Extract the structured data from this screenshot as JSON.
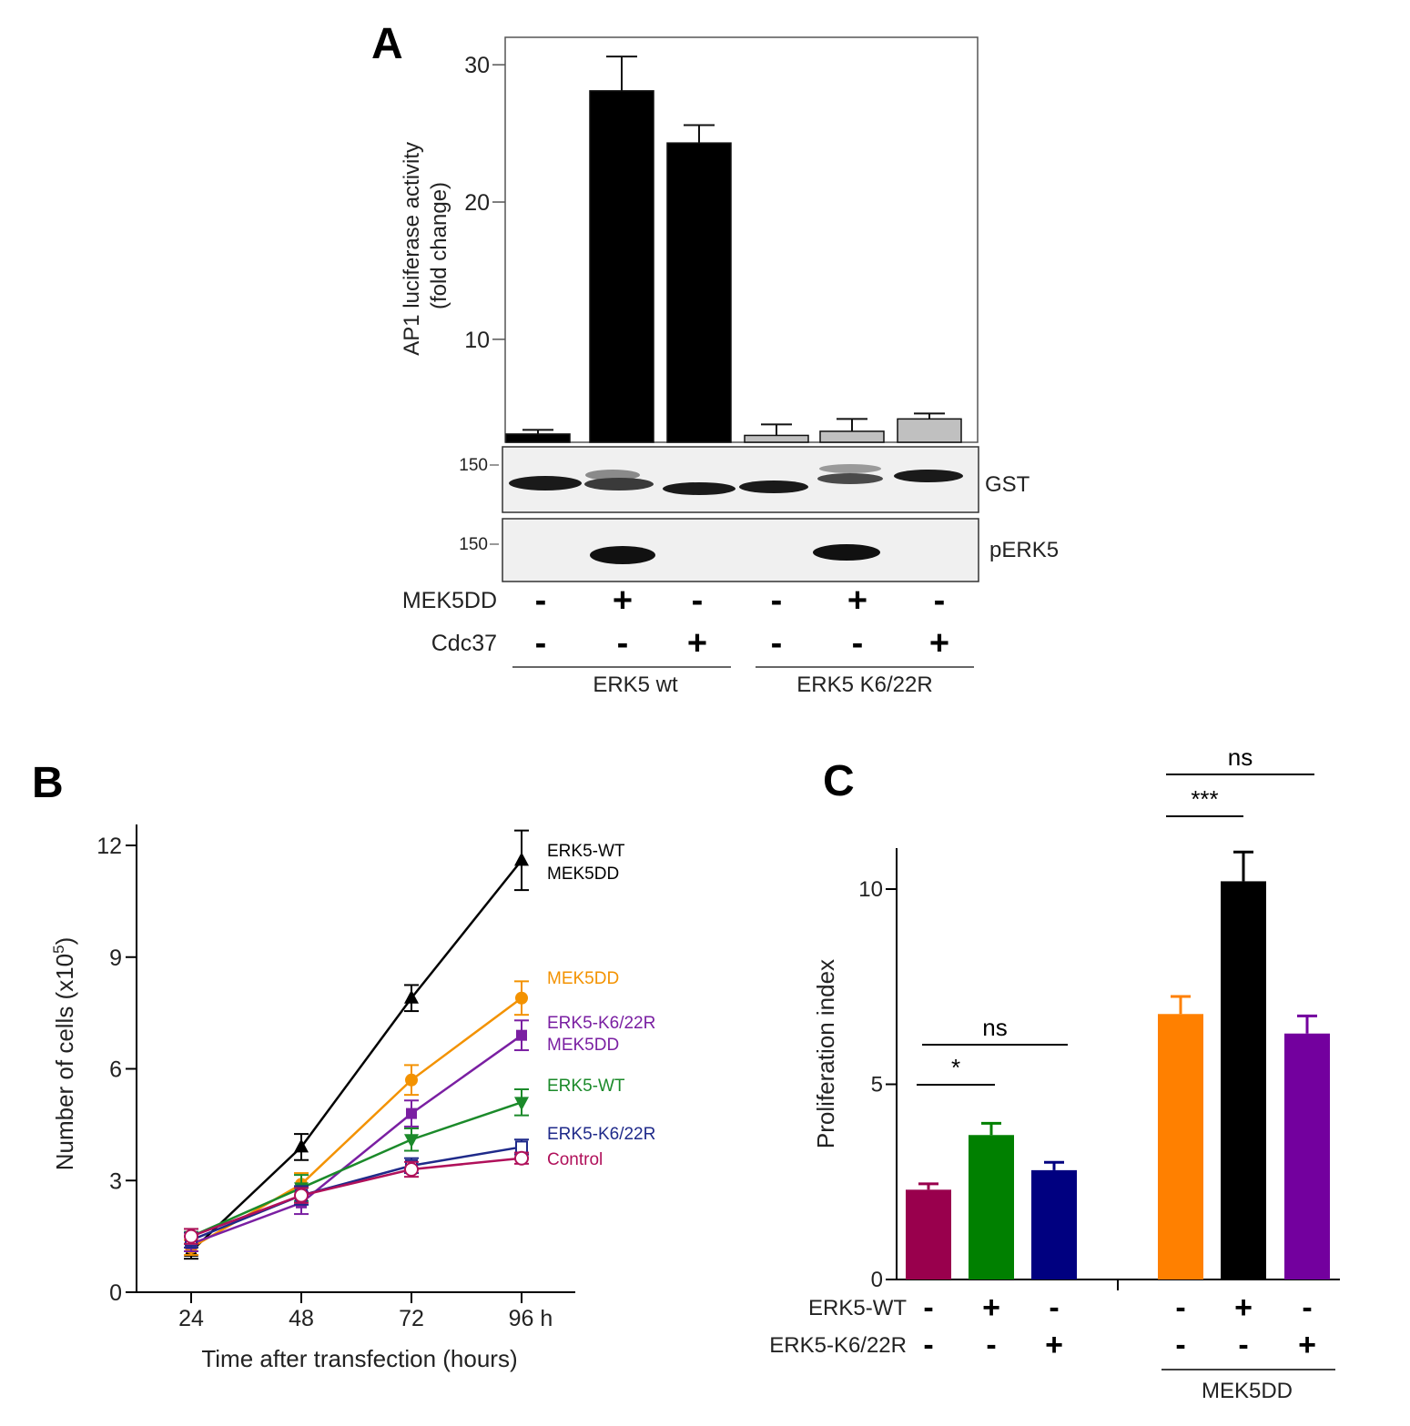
{
  "colors": {
    "black": "#000000",
    "grey": "#c0c0c0",
    "crimson": "#99004d",
    "green": "#008000",
    "navy": "#000080",
    "orange": "#ff8000",
    "purple": "#73009e",
    "line_orange": "#f39200",
    "line_purple": "#7a1fa2",
    "line_green": "#1b8a2a",
    "line_navy": "#1f2a8a",
    "line_control": "#b0105a"
  },
  "chart_data": [
    {
      "panel": "A",
      "panel_label": "A",
      "type": "bar",
      "ylabel_line1": "AP1 luciferase activity",
      "ylabel_line2": "(fold change)",
      "ylim": [
        2.5,
        32
      ],
      "yticks": [
        10,
        20,
        30
      ],
      "ytick_labels": [
        "10",
        "20",
        "30"
      ],
      "values": [
        3.1,
        28.1,
        24.3,
        3.0,
        3.3,
        4.2
      ],
      "errors": [
        0.3,
        2.5,
        1.3,
        0.8,
        0.9,
        0.4
      ],
      "bar_colors": [
        "black",
        "black",
        "black",
        "grey",
        "grey",
        "grey"
      ],
      "blots": [
        {
          "name": "GST",
          "marker": "150"
        },
        {
          "name": "pERK5",
          "marker": "150"
        }
      ],
      "conditions": [
        {
          "label": "MEK5DD",
          "signs": [
            "-",
            "+",
            "-",
            "-",
            "+",
            "-"
          ]
        },
        {
          "label": "Cdc37",
          "signs": [
            "-",
            "-",
            "+",
            "-",
            "-",
            "+"
          ]
        }
      ],
      "groups": [
        "ERK5 wt",
        "ERK5 K6/22R"
      ]
    },
    {
      "panel": "B",
      "panel_label": "B",
      "type": "line",
      "xlabel": "Time after transfection (hours)",
      "ylabel": "Number of cells (x10",
      "ylabel_exp": "5",
      "ylabel_close": ")",
      "x": [
        24,
        48,
        72,
        96
      ],
      "xtick_labels": [
        "24",
        "48",
        "72",
        "96 h"
      ],
      "ylim": [
        0,
        12.5
      ],
      "yticks": [
        0,
        3,
        6,
        9,
        12
      ],
      "ytick_labels": [
        "0",
        "3",
        "6",
        "9",
        "12"
      ],
      "series": [
        {
          "name": "ERK5-WT MEK5DD",
          "label_lines": [
            "ERK5-WT",
            "MEK5DD"
          ],
          "label_color": "black",
          "color": "black",
          "marker": "triangle-up",
          "values": [
            1.1,
            3.9,
            7.9,
            11.6
          ],
          "errors": [
            0.2,
            0.35,
            0.35,
            0.8
          ]
        },
        {
          "name": "MEK5DD",
          "label_lines": [
            "MEK5DD"
          ],
          "label_color": "line_orange",
          "color": "line_orange",
          "marker": "circle",
          "values": [
            1.2,
            2.9,
            5.7,
            7.9
          ],
          "errors": [
            0.2,
            0.3,
            0.4,
            0.45
          ]
        },
        {
          "name": "ERK5-K6/22R MEK5DD",
          "label_lines": [
            "ERK5-K6/22R",
            "MEK5DD"
          ],
          "label_color": "line_purple",
          "color": "line_purple",
          "marker": "square",
          "values": [
            1.3,
            2.4,
            4.8,
            6.9
          ],
          "errors": [
            0.2,
            0.3,
            0.35,
            0.4
          ]
        },
        {
          "name": "ERK5-WT",
          "label_lines": [
            "ERK5-WT"
          ],
          "label_color": "line_green",
          "color": "line_green",
          "marker": "triangle-down",
          "values": [
            1.5,
            2.8,
            4.1,
            5.1
          ],
          "errors": [
            0.2,
            0.35,
            0.3,
            0.35
          ]
        },
        {
          "name": "ERK5-K6/22R",
          "label_lines": [
            "ERK5-K6/22R"
          ],
          "label_color": "line_navy",
          "color": "line_navy",
          "marker": "square-open",
          "values": [
            1.4,
            2.6,
            3.4,
            3.9
          ],
          "errors": [
            0.2,
            0.25,
            0.2,
            0.2
          ]
        },
        {
          "name": "Control",
          "label_lines": [
            "Control"
          ],
          "label_color": "line_control",
          "color": "line_control",
          "marker": "circle-open",
          "values": [
            1.5,
            2.6,
            3.3,
            3.6
          ],
          "errors": [
            0.2,
            0.2,
            0.2,
            0.15
          ]
        }
      ]
    },
    {
      "panel": "C",
      "panel_label": "C",
      "type": "bar",
      "ylabel": "Proliferation index",
      "ylim": [
        0,
        11
      ],
      "yticks": [
        0,
        5,
        10
      ],
      "ytick_labels": [
        "0",
        "5",
        "10"
      ],
      "values": [
        2.3,
        3.7,
        2.8,
        6.8,
        10.2,
        6.3
      ],
      "errors": [
        0.15,
        0.3,
        0.2,
        0.45,
        0.75,
        0.45
      ],
      "bar_colors": [
        "crimson",
        "green",
        "navy",
        "orange",
        "black",
        "purple"
      ],
      "conditions": [
        {
          "label": "ERK5-WT",
          "signs": [
            "-",
            "+",
            "-",
            "-",
            "+",
            "-"
          ]
        },
        {
          "label": "ERK5-K6/22R",
          "signs": [
            "-",
            "-",
            "+",
            "-",
            "-",
            "+"
          ]
        }
      ],
      "group_label": "MEK5DD",
      "significance": [
        {
          "label": "*",
          "from_bar": 0,
          "to_bar": 1
        },
        {
          "label": "ns",
          "from_bar": 0,
          "to_bar": 2
        },
        {
          "label": "***",
          "from_bar": 3,
          "to_bar": 4
        },
        {
          "label": "ns",
          "from_bar": 3,
          "to_bar": 5
        }
      ]
    }
  ]
}
